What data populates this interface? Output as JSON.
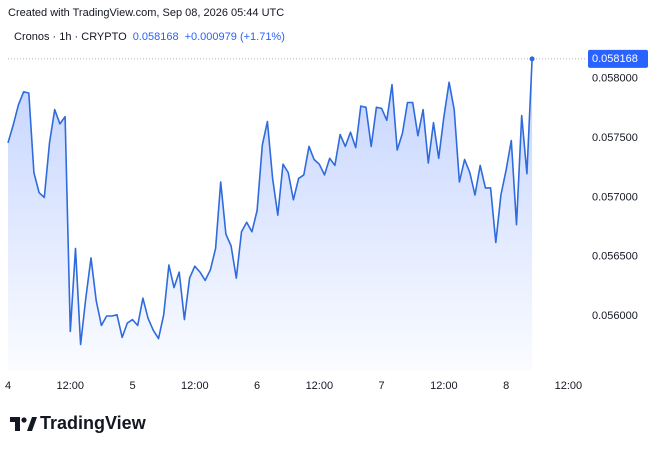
{
  "header": "Created with TradingView.com, Sep 08, 2026 05:44 UTC",
  "logo": "TradingView",
  "chart_data": {
    "type": "line",
    "symbol": "Cronos · 1h · CRYPTO",
    "change": "+0.000979 (+1.71%)",
    "color": "#2f6bdc",
    "grid": false,
    "x": [
      0,
      1,
      2,
      3,
      4,
      5,
      6,
      7,
      8,
      9,
      10,
      11,
      12,
      13,
      14,
      15,
      16,
      17,
      18,
      19,
      20,
      21,
      22,
      23,
      24,
      25,
      26,
      27,
      28,
      29,
      30,
      31,
      32,
      33,
      34,
      35,
      36,
      37,
      38,
      39,
      40,
      41,
      42,
      43,
      44,
      45,
      46,
      47,
      48,
      49,
      50,
      51,
      52,
      53,
      54,
      55,
      56,
      57,
      58,
      59,
      60,
      61,
      62,
      63,
      64,
      65,
      66,
      67,
      68,
      69,
      70,
      71,
      72,
      73,
      74,
      75,
      76,
      77,
      78,
      79,
      80,
      81,
      82,
      83,
      84,
      85,
      86,
      87,
      88,
      89,
      90,
      91,
      92,
      93,
      94,
      95,
      96,
      97,
      98,
      99,
      100,
      101
    ],
    "series": [
      {
        "name": "Cronos",
        "color": "#2f6bdc",
        "values": [
          0.05746,
          0.05761,
          0.05778,
          0.05789,
          0.05788,
          0.05721,
          0.05704,
          0.057,
          0.05746,
          0.05774,
          0.05762,
          0.05768,
          0.05587,
          0.05657,
          0.05576,
          0.05615,
          0.05649,
          0.05613,
          0.05592,
          0.056,
          0.056,
          0.05601,
          0.05582,
          0.05594,
          0.05597,
          0.05592,
          0.05615,
          0.05598,
          0.05588,
          0.05581,
          0.05601,
          0.05643,
          0.05624,
          0.05637,
          0.05597,
          0.05632,
          0.05642,
          0.05637,
          0.0563,
          0.05639,
          0.05657,
          0.05713,
          0.05669,
          0.05659,
          0.05632,
          0.05671,
          0.05679,
          0.05671,
          0.05689,
          0.05744,
          0.05764,
          0.05716,
          0.05685,
          0.05728,
          0.05721,
          0.05698,
          0.05716,
          0.05719,
          0.05743,
          0.05732,
          0.05728,
          0.05719,
          0.05733,
          0.05727,
          0.05753,
          0.05743,
          0.05755,
          0.05742,
          0.05777,
          0.05776,
          0.05743,
          0.05776,
          0.05775,
          0.05765,
          0.05795,
          0.0574,
          0.05754,
          0.0578,
          0.0578,
          0.05752,
          0.05774,
          0.05729,
          0.05763,
          0.05733,
          0.05768,
          0.05797,
          0.05774,
          0.05713,
          0.05732,
          0.05721,
          0.05702,
          0.05727,
          0.05708,
          0.05708,
          0.05662,
          0.05702,
          0.05723,
          0.05748,
          0.05677,
          0.05769,
          0.0572,
          0.058168
        ]
      }
    ],
    "xlim": [
      0,
      111.2
    ],
    "xticks": [
      {
        "value": 0,
        "label": "4"
      },
      {
        "value": 12,
        "label": "12:00"
      },
      {
        "value": 24,
        "label": "5"
      },
      {
        "value": 36,
        "label": "12:00"
      },
      {
        "value": 48,
        "label": "6"
      },
      {
        "value": 60,
        "label": "12:00"
      },
      {
        "value": 72,
        "label": "7"
      },
      {
        "value": 84,
        "label": "12:00"
      },
      {
        "value": 96,
        "label": "8"
      },
      {
        "value": 108,
        "label": "12:00"
      }
    ],
    "ylim": [
      0.055545,
      0.058327
    ],
    "yticks": [
      {
        "value": 0.056,
        "label": "0.056000"
      },
      {
        "value": 0.0565,
        "label": "0.056500"
      },
      {
        "value": 0.057,
        "label": "0.057000"
      },
      {
        "value": 0.0575,
        "label": "0.057500"
      },
      {
        "value": 0.058,
        "label": "0.058000"
      }
    ]
  }
}
